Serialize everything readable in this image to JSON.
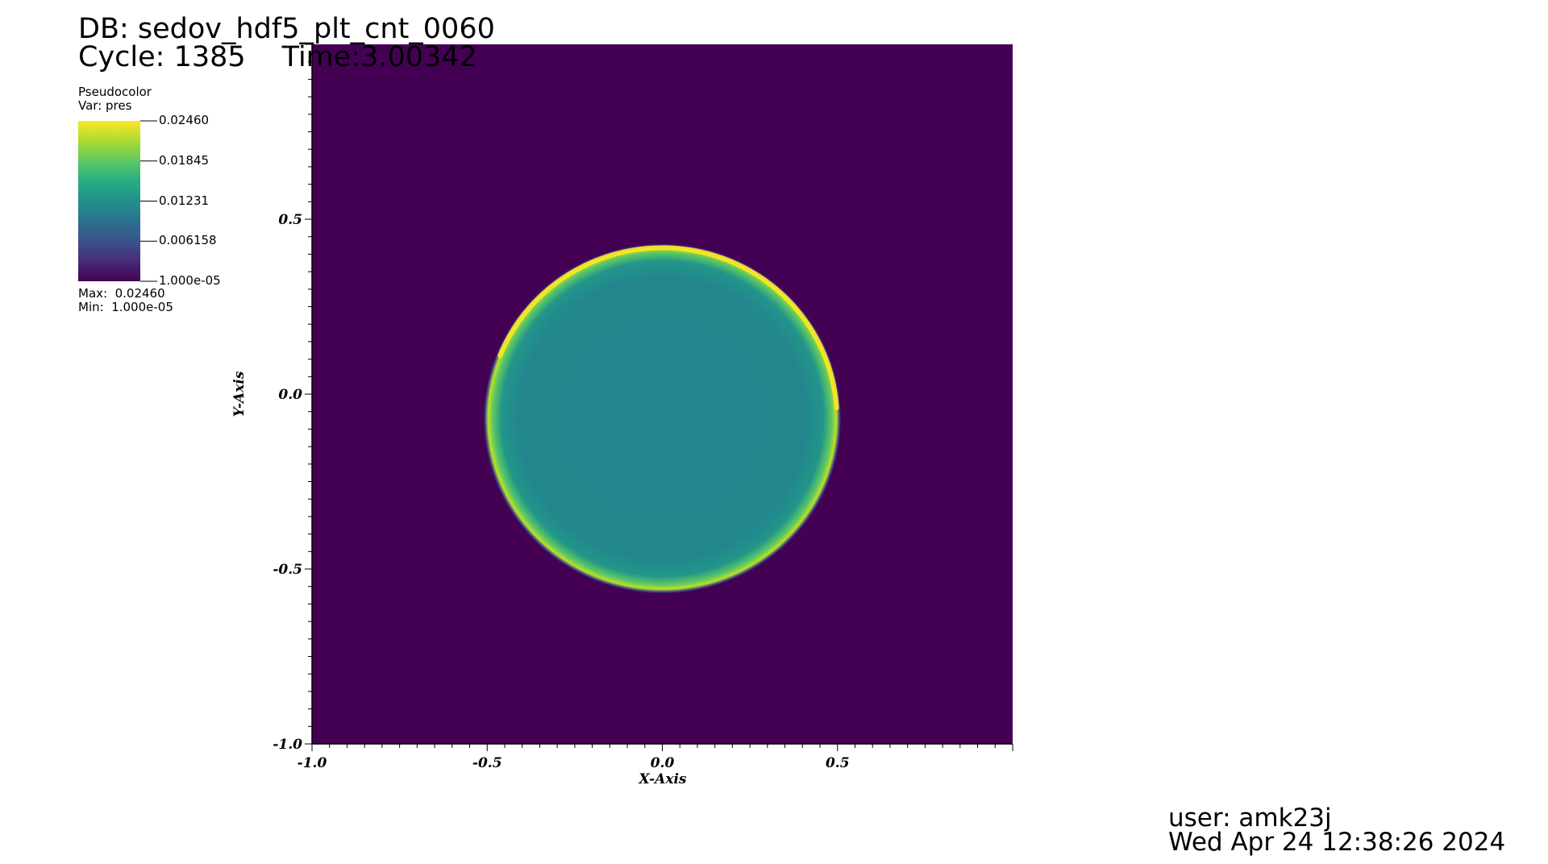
{
  "header": {
    "db_label": "DB: sedov_hdf5_plt_cnt_0060",
    "cycle_label": "Cycle: 1385",
    "time_label": "Time:3.00342"
  },
  "legend": {
    "plot_type": "Pseudocolor",
    "var_label": "Var: pres",
    "ticks": [
      "0.02460",
      "0.01845",
      "0.01231",
      "0.006158",
      "1.000e-05"
    ],
    "max_label": "Max:  0.02460",
    "min_label": "Min:  1.000e-05",
    "colormap": "viridis"
  },
  "footer": {
    "user_label": "user: amk23j",
    "date_label": "Wed Apr 24 12:38:26 2024"
  },
  "colors": {
    "background_field": "#440154",
    "interior": "#23858e",
    "shock_front": "#fde725",
    "shock_mid": "#35b779"
  },
  "chart_data": {
    "type": "heatmap",
    "variable": "pres",
    "xlabel": "X-Axis",
    "ylabel": "Y-Axis",
    "xlim": [
      -1.0,
      1.0
    ],
    "ylim": [
      -1.0,
      1.0
    ],
    "x_ticks": [
      {
        "value": -1.0,
        "label": "-1.0"
      },
      {
        "value": -0.5,
        "label": "-0.5"
      },
      {
        "value": 0.0,
        "label": "0.0"
      },
      {
        "value": 0.5,
        "label": "0.5"
      }
    ],
    "y_ticks": [
      {
        "value": 0.5,
        "label": "0.5"
      },
      {
        "value": 0.0,
        "label": "0.0"
      },
      {
        "value": -0.5,
        "label": "-0.5"
      },
      {
        "value": -1.0,
        "label": "-1.0"
      }
    ],
    "value_range": [
      1e-05,
      0.0246
    ],
    "ambient_value": 1e-05,
    "interior_value": 0.012,
    "shock_peak_value": 0.0246,
    "blast_center": [
      0.0,
      -0.07
    ],
    "blast_radius_x": 0.51,
    "blast_radius_y": 0.5,
    "grid": false
  }
}
